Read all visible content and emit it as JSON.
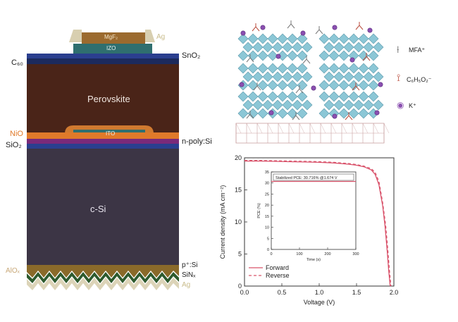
{
  "device": {
    "layers": {
      "mgf2": "MgF₂",
      "ag_top": "Ag",
      "izo": "IZO",
      "sno2": "SnO₂",
      "c60": "C₆₀",
      "perovskite": "Perovskite",
      "ito": "ITO",
      "nio": "NiO",
      "n_poly_si": "n-poly:Si",
      "sio2": "SiO₂",
      "c_si": "c-Si",
      "p_si": "p⁺:Si",
      "alox": "AlOₓ",
      "sinx": "SiNₓ",
      "ag_bottom": "Ag"
    },
    "colors": {
      "ag": "#d8cfb0",
      "mgf2": "#9b6a2e",
      "izo": "#2f6f6f",
      "sno2": "#2b3f8f",
      "c60": "#1c2a5c",
      "perovskite": "#4a2418",
      "ito": "#2f6f6f",
      "nio": "#e07a2a",
      "n_poly_si": "#7a2a7a",
      "sio2": "#2b3f8f",
      "c_si": "#3c3545",
      "p_si": "#8a6a2a",
      "sinx": "#2d5a2d"
    }
  },
  "crystal": {
    "legend": {
      "mfa": "MFA⁺",
      "formate": "C₆H₅O₂⁻",
      "k": "K⁺"
    },
    "colors": {
      "octahedra": "#8cc7d6",
      "k_ion": "#8a4fb0",
      "substrate": "#c9a0a0"
    }
  },
  "chart_data": {
    "type": "line",
    "xlabel": "Voltage (V)",
    "ylabel": "Current density (mA cm⁻²)",
    "xlim": [
      0.0,
      2.0
    ],
    "ylim": [
      0,
      20
    ],
    "xticks": [
      "0.0",
      "0.5",
      "1.0",
      "1.5",
      "2.0"
    ],
    "yticks": [
      "0",
      "5",
      "10",
      "15",
      "20"
    ],
    "legend_position": "bottom-left",
    "series": [
      {
        "name": "Forward",
        "style": "solid",
        "color": "#d9536b",
        "x": [
          0.0,
          0.2,
          0.4,
          0.6,
          0.8,
          1.0,
          1.2,
          1.4,
          1.5,
          1.6,
          1.7,
          1.75,
          1.8,
          1.85,
          1.88,
          1.91,
          1.93,
          1.95
        ],
        "y": [
          19.5,
          19.5,
          19.45,
          19.4,
          19.35,
          19.3,
          19.2,
          19.0,
          18.85,
          18.6,
          18.1,
          17.4,
          15.8,
          12.5,
          9.5,
          5.5,
          2.5,
          0
        ]
      },
      {
        "name": "Reverse",
        "style": "dashed",
        "color": "#d9536b",
        "x": [
          0.0,
          0.2,
          0.4,
          0.6,
          0.8,
          1.0,
          1.2,
          1.4,
          1.5,
          1.6,
          1.7,
          1.75,
          1.8,
          1.85,
          1.89,
          1.92,
          1.94,
          1.96
        ],
        "y": [
          19.6,
          19.6,
          19.55,
          19.5,
          19.45,
          19.4,
          19.3,
          19.1,
          18.95,
          18.7,
          18.3,
          17.7,
          16.3,
          13.0,
          9.5,
          5.5,
          2.5,
          0
        ]
      }
    ],
    "inset": {
      "type": "line",
      "annotation": "Stabilized PCE: 30.716% @1.674 V",
      "xlabel": "Time (s)",
      "ylabel": "PCE (%)",
      "xlim": [
        0,
        300
      ],
      "ylim": [
        0,
        35
      ],
      "xticks": [
        "0",
        "100",
        "200",
        "300"
      ],
      "yticks": [
        "0",
        "5",
        "10",
        "15",
        "20",
        "25",
        "30",
        "35"
      ],
      "series": [
        {
          "name": "",
          "color": "#d9536b",
          "x": [
            0,
            50,
            100,
            150,
            200,
            250,
            300
          ],
          "y": [
            30.7,
            30.7,
            30.7,
            30.7,
            30.7,
            30.7,
            30.7
          ]
        }
      ]
    }
  }
}
